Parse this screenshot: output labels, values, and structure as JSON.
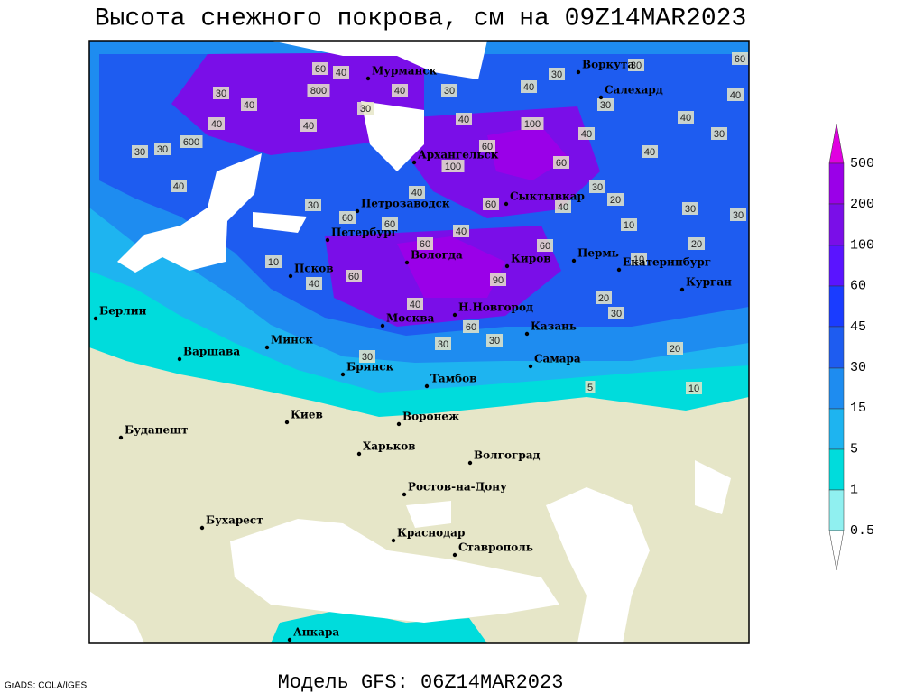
{
  "header": {
    "title": "Высота снежного покрова, см на 09Z14MAR2023"
  },
  "footer": {
    "model": "Модель GFS: 06Z14MAR2023",
    "credit": "GrADS: COLA/IGES"
  },
  "legend": {
    "levels": [
      500,
      200,
      100,
      60,
      45,
      30,
      15,
      5,
      1,
      0.5
    ]
  },
  "map": {
    "cities": [
      "Мурманск",
      "Воркута",
      "Салехард",
      "Архангельск",
      "Петрозаводск",
      "Сыктывкар",
      "Петербург",
      "Вологда",
      "Пермь",
      "Екатеринбург",
      "Псков",
      "Киров",
      "Курган",
      "Берлин",
      "Москва",
      "Н.Новгород",
      "Казань",
      "Минск",
      "Варшава",
      "Самара",
      "Брянск",
      "Тамбов",
      "Киев",
      "Воронеж",
      "Харьков",
      "Будапешт",
      "Волгоград",
      "Ростов-на-Дону",
      "Бухарест",
      "Краснодар",
      "Ставрополь",
      "Анкара"
    ],
    "contour_labels": [
      60,
      40,
      30,
      40,
      30,
      30,
      60,
      800,
      30,
      40,
      40,
      30,
      600,
      30,
      30,
      40,
      40,
      40,
      100,
      40,
      40,
      40,
      30,
      40,
      30,
      40,
      60,
      100,
      60,
      40,
      30,
      60,
      60,
      60,
      30,
      20,
      10,
      30,
      30,
      20,
      40,
      60,
      60,
      40,
      90,
      10,
      60,
      40,
      40,
      60,
      30,
      30,
      30,
      20,
      20,
      30,
      5,
      10,
      10
    ]
  }
}
